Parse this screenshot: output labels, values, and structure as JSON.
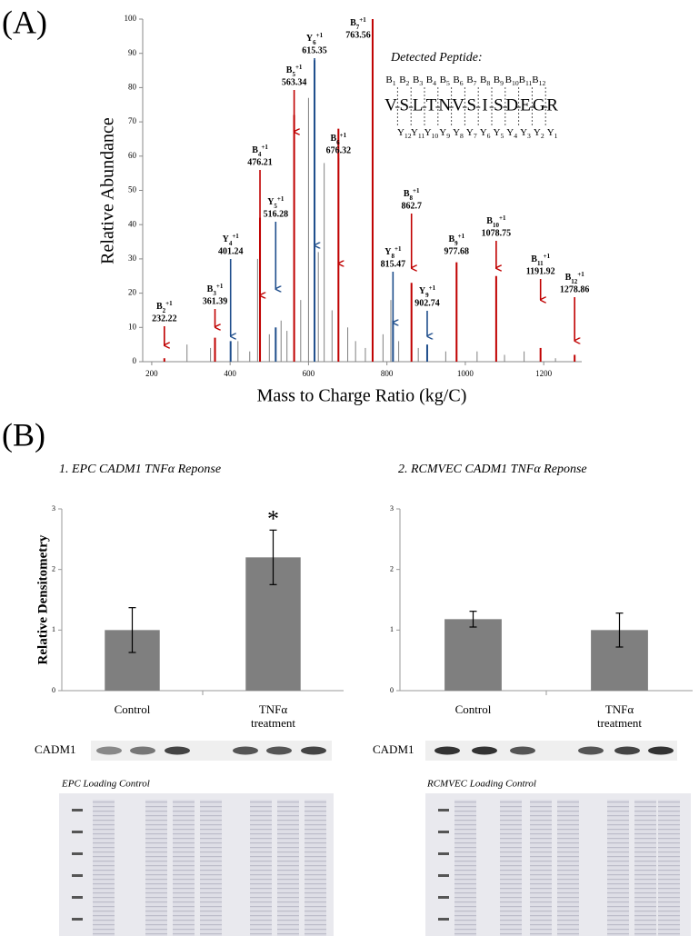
{
  "panels": {
    "a": "(A)",
    "b": "(B)"
  },
  "chart_data": [
    {
      "type": "spectrum",
      "x_label": "Mass to Charge Ratio (kg/C)",
      "y_label": "Relative Abundance",
      "xlim": [
        177,
        1297
      ],
      "ylim": [
        0,
        100
      ],
      "xticks": [
        200,
        400,
        600,
        800,
        1000,
        1200
      ],
      "yticks": [
        0,
        10,
        20,
        30,
        40,
        50,
        60,
        70,
        80,
        90,
        100
      ],
      "background": {
        "color": "#808080",
        "x": [
          290,
          350,
          420,
          450,
          470,
          500,
          530,
          545,
          580,
          600,
          625,
          640,
          660,
          700,
          720,
          745,
          790,
          810,
          830,
          880,
          950,
          1030,
          1100,
          1150,
          1230
        ],
        "values": [
          5,
          4,
          6,
          3,
          30,
          8,
          12,
          9,
          18,
          77,
          32,
          58,
          15,
          10,
          6,
          4,
          8,
          18,
          6,
          4,
          3,
          3,
          2,
          3,
          1
        ]
      },
      "ions": [
        {
          "ion": "B",
          "index": "2",
          "charge": "+1",
          "x": 232.22,
          "value": 1,
          "color": "#c00000"
        },
        {
          "ion": "B",
          "index": "3",
          "charge": "+1",
          "x": 361.39,
          "value": 7,
          "color": "#c00000"
        },
        {
          "ion": "Y",
          "index": "4",
          "charge": "+1",
          "x": 401.24,
          "value": 6,
          "color": "#1f4e8c"
        },
        {
          "ion": "B",
          "index": "4",
          "charge": "+1",
          "x": 476.21,
          "value": 42,
          "color": "#c00000"
        },
        {
          "ion": "Y",
          "index": "5",
          "charge": "+1",
          "x": 516.28,
          "value": 10,
          "color": "#1f4e8c"
        },
        {
          "ion": "B",
          "index": "5",
          "charge": "+1",
          "x": 563.34,
          "value": 72,
          "color": "#c00000"
        },
        {
          "ion": "Y",
          "index": "6",
          "charge": "+1",
          "x": 615.35,
          "value": 88,
          "color": "#1f4e8c"
        },
        {
          "ion": "B",
          "index": "6",
          "charge": "+1",
          "x": 676.32,
          "value": 68,
          "color": "#c00000"
        },
        {
          "ion": "B",
          "index": "7",
          "charge": "+1",
          "x": 763.56,
          "value": 100,
          "color": "#c00000"
        },
        {
          "ion": "Y",
          "index": "8",
          "charge": "+1",
          "x": 815.47,
          "value": 12,
          "color": "#1f4e8c"
        },
        {
          "ion": "B",
          "index": "8",
          "charge": "+1",
          "x": 862.7,
          "value": 23,
          "color": "#c00000"
        },
        {
          "ion": "Y",
          "index": "9",
          "charge": "+1",
          "x": 902.74,
          "value": 5,
          "color": "#1f4e8c"
        },
        {
          "ion": "B",
          "index": "9",
          "charge": "+1",
          "x": 977.68,
          "value": 29,
          "color": "#c00000"
        },
        {
          "ion": "B",
          "index": "10",
          "charge": "+1",
          "x": 1078.75,
          "value": 25,
          "color": "#c00000"
        },
        {
          "ion": "B",
          "index": "11",
          "charge": "+1",
          "x": 1191.92,
          "value": 4,
          "color": "#c00000"
        },
        {
          "ion": "B",
          "index": "12",
          "charge": "+1",
          "x": 1278.86,
          "value": 2,
          "color": "#c00000"
        }
      ],
      "peptide": {
        "title": "Detected Peptide:",
        "residues": [
          "V",
          "S",
          "L",
          "T",
          "N",
          "V",
          "S",
          "I",
          "S",
          "D",
          "E",
          "G",
          "R"
        ],
        "b_ions": [
          {
            "ion": "B",
            "index": "1"
          },
          {
            "ion": "B",
            "index": "2"
          },
          {
            "ion": "B",
            "index": "3"
          },
          {
            "ion": "B",
            "index": "4"
          },
          {
            "ion": "B",
            "index": "5"
          },
          {
            "ion": "B",
            "index": "6"
          },
          {
            "ion": "B",
            "index": "7"
          },
          {
            "ion": "B",
            "index": "8"
          },
          {
            "ion": "B",
            "index": "9"
          },
          {
            "ion": "B",
            "index": "10"
          },
          {
            "ion": "B",
            "index": "11"
          },
          {
            "ion": "B",
            "index": "12"
          }
        ],
        "y_ions": [
          {
            "ion": "Y",
            "index": "12"
          },
          {
            "ion": "Y",
            "index": "11"
          },
          {
            "ion": "Y",
            "index": "10"
          },
          {
            "ion": "Y",
            "index": "9"
          },
          {
            "ion": "Y",
            "index": "8"
          },
          {
            "ion": "Y",
            "index": "7"
          },
          {
            "ion": "Y",
            "index": "6"
          },
          {
            "ion": "Y",
            "index": "5"
          },
          {
            "ion": "Y",
            "index": "4"
          },
          {
            "ion": "Y",
            "index": "3"
          },
          {
            "ion": "Y",
            "index": "2"
          },
          {
            "ion": "Y",
            "index": "1"
          }
        ]
      }
    },
    {
      "type": "bar",
      "title": "1. EPC CADM1 TNFα Reponse",
      "y_label": "Relative Densitometry",
      "categories": [
        "Control",
        "TNFα treatment"
      ],
      "values": [
        1.0,
        2.2
      ],
      "errors": [
        0.37,
        0.45
      ],
      "color": "#7f7f7f",
      "ylim": [
        0,
        3
      ],
      "yticks": [
        0,
        1,
        2,
        3
      ],
      "annotations": [
        {
          "text": "*",
          "category": "TNFα treatment"
        }
      ]
    },
    {
      "type": "bar",
      "title": "2. RCMVEC CADM1 TNFα Reponse",
      "categories": [
        "Control",
        "TNFα treatment"
      ],
      "values": [
        1.18,
        1.0
      ],
      "errors": [
        0.13,
        0.28
      ],
      "color": "#7f7f7f",
      "ylim": [
        0,
        3
      ],
      "yticks": [
        0,
        1,
        2,
        3
      ]
    }
  ],
  "blots": [
    {
      "label": "CADM1",
      "loading_control": "EPC Loading Control"
    },
    {
      "label": "CADM1",
      "loading_control": "RCMVEC Loading Control"
    }
  ]
}
